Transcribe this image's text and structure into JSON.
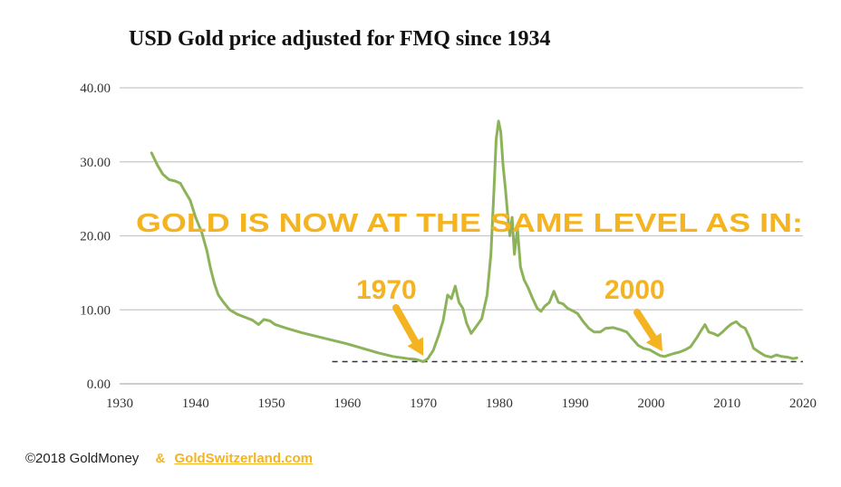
{
  "chart_data": {
    "type": "line",
    "title": "USD Gold price adjusted for FMQ since 1934",
    "xlabel": "",
    "ylabel": "",
    "xlim": [
      1930,
      2020
    ],
    "ylim": [
      0,
      40
    ],
    "x_ticks": [
      "1930",
      "1940",
      "1950",
      "1960",
      "1970",
      "1980",
      "1990",
      "2000",
      "2010",
      "2020"
    ],
    "y_ticks": [
      "0.00",
      "10.00",
      "20.00",
      "30.00",
      "40.00"
    ],
    "grid": "horizontal",
    "line_color": "#8DB35A",
    "series": [
      {
        "name": "Gold price adjusted for FMQ",
        "points": [
          [
            1934.2,
            31.2
          ],
          [
            1935,
            29.5
          ],
          [
            1935.7,
            28.3
          ],
          [
            1936.5,
            27.6
          ],
          [
            1937.3,
            27.4
          ],
          [
            1938,
            27.1
          ],
          [
            1938.6,
            26.0
          ],
          [
            1939.3,
            24.8
          ],
          [
            1940,
            22.5
          ],
          [
            1940.8,
            20.5
          ],
          [
            1941.5,
            18.0
          ],
          [
            1942,
            15.5
          ],
          [
            1942.5,
            13.5
          ],
          [
            1943,
            12.0
          ],
          [
            1943.7,
            11.0
          ],
          [
            1944.5,
            10.0
          ],
          [
            1945.5,
            9.4
          ],
          [
            1946.5,
            9.0
          ],
          [
            1947.5,
            8.6
          ],
          [
            1948.3,
            8.0
          ],
          [
            1949,
            8.7
          ],
          [
            1949.8,
            8.5
          ],
          [
            1950.5,
            8.0
          ],
          [
            1952,
            7.5
          ],
          [
            1954,
            6.9
          ],
          [
            1956,
            6.4
          ],
          [
            1958,
            5.9
          ],
          [
            1960,
            5.4
          ],
          [
            1962,
            4.8
          ],
          [
            1964,
            4.2
          ],
          [
            1966,
            3.7
          ],
          [
            1968,
            3.4
          ],
          [
            1969,
            3.3
          ],
          [
            1970,
            3.0
          ],
          [
            1970.6,
            3.4
          ],
          [
            1971.3,
            4.5
          ],
          [
            1972,
            6.5
          ],
          [
            1972.6,
            8.5
          ],
          [
            1973.2,
            12.0
          ],
          [
            1973.7,
            11.5
          ],
          [
            1974.2,
            13.2
          ],
          [
            1974.7,
            11.0
          ],
          [
            1975.2,
            10.2
          ],
          [
            1975.7,
            8.2
          ],
          [
            1976.3,
            6.8
          ],
          [
            1977,
            7.8
          ],
          [
            1977.7,
            8.8
          ],
          [
            1978.4,
            12.0
          ],
          [
            1978.9,
            17.5
          ],
          [
            1979.3,
            26.0
          ],
          [
            1979.6,
            33.0
          ],
          [
            1979.9,
            35.5
          ],
          [
            1980.2,
            34.0
          ],
          [
            1980.5,
            29.5
          ],
          [
            1980.8,
            26.5
          ],
          [
            1981.1,
            23.0
          ],
          [
            1981.4,
            20.0
          ],
          [
            1981.7,
            22.5
          ],
          [
            1982,
            17.5
          ],
          [
            1982.4,
            21.0
          ],
          [
            1982.8,
            15.8
          ],
          [
            1983.3,
            14.0
          ],
          [
            1983.8,
            13.0
          ],
          [
            1984.4,
            11.5
          ],
          [
            1985,
            10.2
          ],
          [
            1985.5,
            9.8
          ],
          [
            1986,
            10.5
          ],
          [
            1986.6,
            11.0
          ],
          [
            1987.2,
            12.5
          ],
          [
            1987.8,
            11.0
          ],
          [
            1988.4,
            10.8
          ],
          [
            1989,
            10.2
          ],
          [
            1989.8,
            9.8
          ],
          [
            1990.3,
            9.5
          ],
          [
            1991,
            8.5
          ],
          [
            1991.8,
            7.5
          ],
          [
            1992.5,
            7.0
          ],
          [
            1993.3,
            7.0
          ],
          [
            1994,
            7.5
          ],
          [
            1995,
            7.6
          ],
          [
            1996,
            7.3
          ],
          [
            1996.8,
            7.0
          ],
          [
            1997.6,
            6.0
          ],
          [
            1998.3,
            5.2
          ],
          [
            1999,
            4.8
          ],
          [
            1999.8,
            4.6
          ],
          [
            2000.5,
            4.2
          ],
          [
            2001.2,
            3.8
          ],
          [
            2001.8,
            3.7
          ],
          [
            2002.4,
            3.9
          ],
          [
            2003,
            4.1
          ],
          [
            2003.8,
            4.3
          ],
          [
            2004.5,
            4.6
          ],
          [
            2005.2,
            5.0
          ],
          [
            2006,
            6.2
          ],
          [
            2006.6,
            7.2
          ],
          [
            2007.1,
            8.0
          ],
          [
            2007.6,
            7.0
          ],
          [
            2008.2,
            6.8
          ],
          [
            2008.8,
            6.5
          ],
          [
            2009.4,
            7.0
          ],
          [
            2010,
            7.6
          ],
          [
            2010.6,
            8.1
          ],
          [
            2011.2,
            8.4
          ],
          [
            2011.8,
            7.8
          ],
          [
            2012.4,
            7.5
          ],
          [
            2013,
            6.2
          ],
          [
            2013.5,
            4.8
          ],
          [
            2014.2,
            4.3
          ],
          [
            2015,
            3.8
          ],
          [
            2015.8,
            3.6
          ],
          [
            2016.5,
            3.9
          ],
          [
            2017.2,
            3.7
          ],
          [
            2018,
            3.6
          ],
          [
            2018.7,
            3.4
          ],
          [
            2019.2,
            3.5
          ]
        ]
      }
    ],
    "reference_line": {
      "y": 3.0,
      "x_start": 1958,
      "x_end": 2020,
      "style": "dashed",
      "color": "#333333"
    },
    "annotations": {
      "headline": {
        "text": "GOLD IS NOW AT THE SAME LEVEL AS IN:",
        "color": "#F4B321"
      },
      "year_labels": [
        {
          "text": "1970",
          "arrow_to": [
            1970,
            3.3
          ]
        },
        {
          "text": "2000",
          "arrow_to": [
            2001.5,
            3.9
          ]
        }
      ]
    }
  },
  "footer": {
    "copyright": "©2018 GoldMoney",
    "ampersand": "&",
    "link": "GoldSwitzerland.com"
  }
}
